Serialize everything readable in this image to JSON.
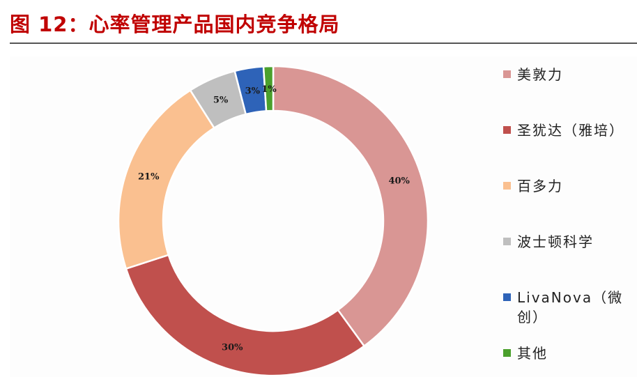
{
  "header": {
    "title": "图 12：心率管理产品国内竞争格局"
  },
  "chart_data": {
    "type": "pie",
    "donut": true,
    "legend_position": "right",
    "categories": [
      "美敦力",
      "圣犹达（雅培）",
      "百多力",
      "波士顿科学",
      "LivaNova（微创）",
      "其他"
    ],
    "values": [
      40,
      30,
      21,
      5,
      3,
      1
    ],
    "labels": [
      "40%",
      "30%",
      "21%",
      "5%",
      "3%",
      "1%"
    ],
    "colors": [
      "#d99694",
      "#c0504d",
      "#fac090",
      "#bfbfbf",
      "#2e63b8",
      "#4aa02c"
    ]
  }
}
